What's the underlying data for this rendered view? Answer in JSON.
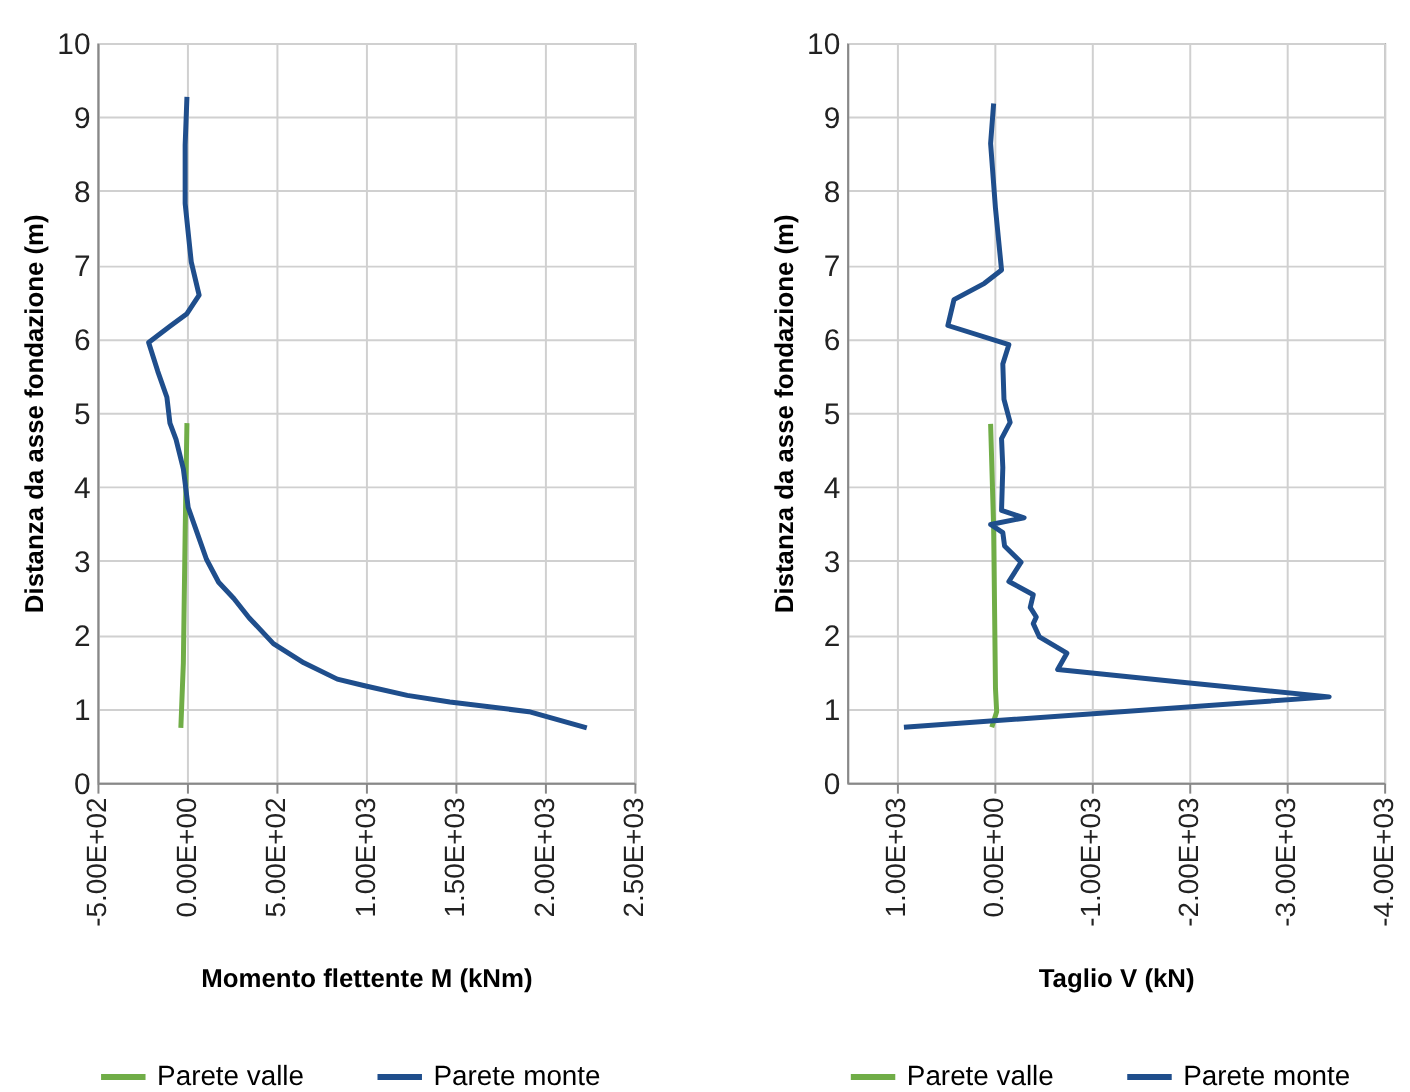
{
  "chart_data": [
    {
      "type": "line",
      "xlabel": "Momento flettente M (kNm)",
      "ylabel": "Distanza da asse fondazione (m)",
      "xlim": [
        -500,
        2500
      ],
      "xticks": [
        {
          "value": -500,
          "label": "-5.00E+02"
        },
        {
          "value": 0,
          "label": "0.00E+00"
        },
        {
          "value": 500,
          "label": "5.00E+02"
        },
        {
          "value": 1000,
          "label": "1.00E+03"
        },
        {
          "value": 1500,
          "label": "1.50E+03"
        },
        {
          "value": 2000,
          "label": "2.00E+03"
        },
        {
          "value": 2500,
          "label": "2.50E+03"
        }
      ],
      "ylim": [
        0,
        10
      ],
      "yticks": [
        0,
        1,
        2,
        3,
        4,
        5,
        6,
        7,
        8,
        9,
        10
      ],
      "grid": true,
      "legend": "bottom",
      "marker": "none",
      "line_style": "solid",
      "series": [
        {
          "name": "Parete valle",
          "color": "#70ad47",
          "x": [
            0,
            -10,
            -20,
            -34
          ],
          "values": [
            4.86,
            3.37,
            1.62,
            0.74
          ]
        },
        {
          "name": "Parete monte",
          "color": "#1f4e8c",
          "x": [
            0,
            -10,
            -10,
            24,
            68,
            0,
            -95,
            -214,
            -163,
            -112,
            -95,
            -61,
            -20,
            7,
            58,
            109,
            177,
            262,
            347,
            483,
            653,
            840,
            993,
            1231,
            1469,
            1911,
            2234
          ],
          "values": [
            9.27,
            8.62,
            7.83,
            7.04,
            6.59,
            6.34,
            6.17,
            5.95,
            5.56,
            5.21,
            4.86,
            4.64,
            4.24,
            3.72,
            3.37,
            3.02,
            2.71,
            2.49,
            2.23,
            1.88,
            1.62,
            1.4,
            1.31,
            1.18,
            1.09,
            0.96,
            0.74
          ]
        }
      ]
    },
    {
      "type": "line",
      "xlabel": "Taglio V (kN)",
      "ylabel": "Distanza da asse fondazione (m)",
      "xlim": [
        1500,
        -4000
      ],
      "xticks": [
        {
          "value": 1000,
          "label": "1.00E+03"
        },
        {
          "value": 0,
          "label": "0.00E+00"
        },
        {
          "value": -1000,
          "label": "-1.00E+03"
        },
        {
          "value": -2000,
          "label": "-2.00E+03"
        },
        {
          "value": -3000,
          "label": "-3.00E+03"
        },
        {
          "value": -4000,
          "label": "-4.00E+03"
        }
      ],
      "ylim": [
        0,
        10
      ],
      "yticks": [
        0,
        1,
        2,
        3,
        4,
        5,
        6,
        7,
        8,
        9,
        10
      ],
      "grid": true,
      "legend": "bottom",
      "marker": "none",
      "line_style": "solid",
      "series": [
        {
          "name": "Parete valle",
          "color": "#70ad47",
          "x": [
            31,
            0,
            -19,
            -31,
            19
          ],
          "values": [
            4.85,
            3.45,
            1.27,
            0.96,
            0.75
          ]
        },
        {
          "name": "Parete monte",
          "color": "#1f4e8c",
          "x": [
            0,
            31,
            -19,
            -81,
            94,
            406,
            469,
            -156,
            -94,
            -106,
            -169,
            -81,
            -94,
            -81,
            -312,
            31,
            -94,
            -112,
            -281,
            -156,
            -406,
            -375,
            -437,
            -406,
            -469,
            -750,
            -656,
            -1906,
            -3437,
            919
          ],
          "values": [
            9.18,
            8.64,
            7.76,
            6.93,
            6.75,
            6.53,
            6.18,
            5.92,
            5.66,
            5.18,
            4.87,
            4.65,
            4.26,
            3.68,
            3.58,
            3.49,
            3.38,
            3.2,
            2.98,
            2.72,
            2.54,
            2.37,
            2.24,
            2.15,
            1.97,
            1.75,
            1.53,
            1.36,
            1.16,
            0.75
          ]
        }
      ]
    }
  ]
}
